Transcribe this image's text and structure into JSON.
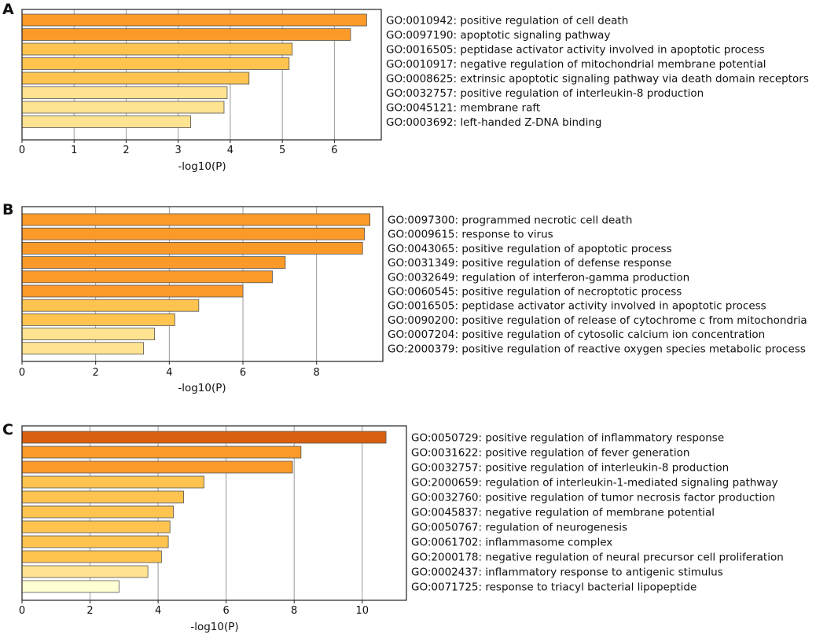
{
  "chart_data": [
    {
      "type": "bar",
      "panel": "A",
      "orientation": "horizontal",
      "xlabel": "-log10(P)",
      "xlim": [
        0,
        6.9
      ],
      "xticks": [
        0,
        1,
        2,
        3,
        4,
        5,
        6
      ],
      "grid": true,
      "categories": [
        "GO:0010942: positive regulation of cell death",
        "GO:0097190: apoptotic signaling pathway",
        "GO:0016505: peptidase activator activity involved in apoptotic process",
        "GO:0010917: negative regulation of mitochondrial membrane potential",
        "GO:0008625: extrinsic apoptotic signaling pathway via death domain receptors",
        "GO:0032757: positive regulation of interleukin-8 production",
        "GO:0045121: membrane raft",
        "GO:0003692: left-handed Z-DNA binding"
      ],
      "values": [
        6.62,
        6.31,
        5.19,
        5.13,
        4.36,
        3.94,
        3.88,
        3.24
      ],
      "colors": [
        "#fb9a29",
        "#fb9a29",
        "#fec44f",
        "#fec44f",
        "#fec44f",
        "#fee391",
        "#fee391",
        "#fee391"
      ]
    },
    {
      "type": "bar",
      "panel": "B",
      "orientation": "horizontal",
      "xlabel": "-log10(P)",
      "xlim": [
        0,
        9.8
      ],
      "xticks": [
        0,
        2,
        4,
        6,
        8
      ],
      "grid": true,
      "categories": [
        "GO:0097300: programmed necrotic cell death",
        "GO:0009615: response to virus",
        "GO:0043065: positive regulation of apoptotic process",
        "GO:0031349: positive regulation of defense response",
        "GO:0032649: regulation of interferon-gamma production",
        "GO:0060545: positive regulation of necroptotic process",
        "GO:0016505: peptidase activator activity involved in apoptotic process",
        "GO:0090200: positive regulation of release of cytochrome c from mitochondria",
        "GO:0007204: positive regulation of cytosolic calcium ion concentration",
        "GO:2000379: positive regulation of reactive oxygen species metabolic process"
      ],
      "values": [
        9.45,
        9.3,
        9.25,
        7.15,
        6.8,
        6.0,
        4.8,
        4.15,
        3.6,
        3.3
      ],
      "colors": [
        "#fb9a29",
        "#fb9a29",
        "#fb9a29",
        "#fb9a29",
        "#fb9a29",
        "#fb9a29",
        "#fec44f",
        "#fec44f",
        "#fee391",
        "#fee391"
      ]
    },
    {
      "type": "bar",
      "panel": "C",
      "orientation": "horizontal",
      "xlabel": "-log10(P)",
      "xlim": [
        0,
        11.3
      ],
      "xticks": [
        0,
        2,
        4,
        6,
        8,
        10
      ],
      "grid": true,
      "categories": [
        "GO:0050729: positive regulation of inflammatory response",
        "GO:0031622: positive regulation of fever generation",
        "GO:0032757: positive regulation of interleukin-8 production",
        "GO:2000659: regulation of interleukin-1-mediated signaling pathway",
        "GO:0032760: positive regulation of tumor necrosis factor production",
        "GO:0045837: negative regulation of membrane potential",
        "GO:0050767: regulation of neurogenesis",
        "GO:0061702: inflammasome complex",
        "GO:2000178: negative regulation of neural precursor cell proliferation",
        "GO:0002437: inflammatory response to antigenic stimulus",
        "GO:0071725: response to triacyl bacterial lipopeptide"
      ],
      "values": [
        10.7,
        8.2,
        7.95,
        5.35,
        4.75,
        4.45,
        4.35,
        4.3,
        4.1,
        3.7,
        2.85
      ],
      "colors": [
        "#d95f0e",
        "#fb9a29",
        "#fb9a29",
        "#fec44f",
        "#fec44f",
        "#fec44f",
        "#fec44f",
        "#fec44f",
        "#fec44f",
        "#fee391",
        "#ffffd4"
      ]
    }
  ]
}
